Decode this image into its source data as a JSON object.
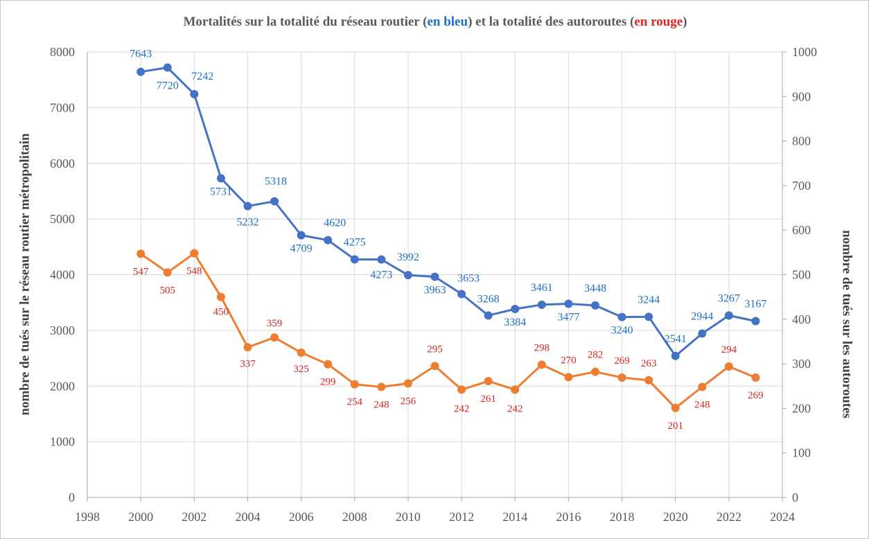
{
  "title": {
    "prefix": "Mortalités sur la totalité du réseau routier (",
    "blue_word": "en bleu",
    "middle": ") et la totalité des autoroutes (",
    "red_word": "en rouge",
    "suffix": ")"
  },
  "colors": {
    "series_blue": "#4472c4",
    "series_orange": "#ed7d31",
    "label_blue": "#1f6fc2",
    "label_red": "#d9231e",
    "grid": "#d9d9d9"
  },
  "chart_data": {
    "type": "line",
    "title": "Mortalités sur la totalité du réseau routier (en bleu) et la totalité des autoroutes (en rouge)",
    "xlabel": "",
    "ylabel": "nombre de tués sur le réseau routier métropolitain",
    "y2label": "nombre de tués sur les autoroutes",
    "xlim": [
      1998,
      2024
    ],
    "ylim": [
      0,
      8000
    ],
    "y2lim": [
      0,
      1000
    ],
    "grid": true,
    "x_ticks": [
      1998,
      2000,
      2002,
      2004,
      2006,
      2008,
      2010,
      2012,
      2014,
      2016,
      2018,
      2020,
      2022,
      2024
    ],
    "y_ticks": [
      0,
      1000,
      2000,
      3000,
      4000,
      5000,
      6000,
      7000,
      8000
    ],
    "y2_ticks": [
      0,
      100,
      200,
      300,
      400,
      500,
      600,
      700,
      800,
      900,
      1000
    ],
    "series": [
      {
        "axis": "left",
        "color": "#4472c4",
        "x": [
          2000,
          2001,
          2002,
          2003,
          2004,
          2005,
          2006,
          2007,
          2008,
          2009,
          2010,
          2011,
          2012,
          2013,
          2014,
          2015,
          2016,
          2017,
          2018,
          2019,
          2020,
          2021,
          2022,
          2023
        ],
        "values": [
          7643,
          7720,
          7242,
          5731,
          5232,
          5318,
          4709,
          4620,
          4275,
          4273,
          3992,
          3963,
          3653,
          3268,
          3384,
          3461,
          3477,
          3448,
          3240,
          3244,
          2541,
          2944,
          3267,
          3167
        ]
      },
      {
        "axis": "right",
        "color": "#ed7d31",
        "x": [
          2000,
          2001,
          2002,
          2003,
          2004,
          2005,
          2006,
          2007,
          2008,
          2009,
          2010,
          2011,
          2012,
          2013,
          2014,
          2015,
          2016,
          2017,
          2018,
          2019,
          2020,
          2021,
          2022,
          2023
        ],
        "values": [
          547,
          505,
          548,
          450,
          337,
          359,
          325,
          299,
          254,
          248,
          256,
          295,
          242,
          261,
          242,
          298,
          270,
          282,
          269,
          263,
          201,
          248,
          294,
          269
        ]
      }
    ]
  }
}
